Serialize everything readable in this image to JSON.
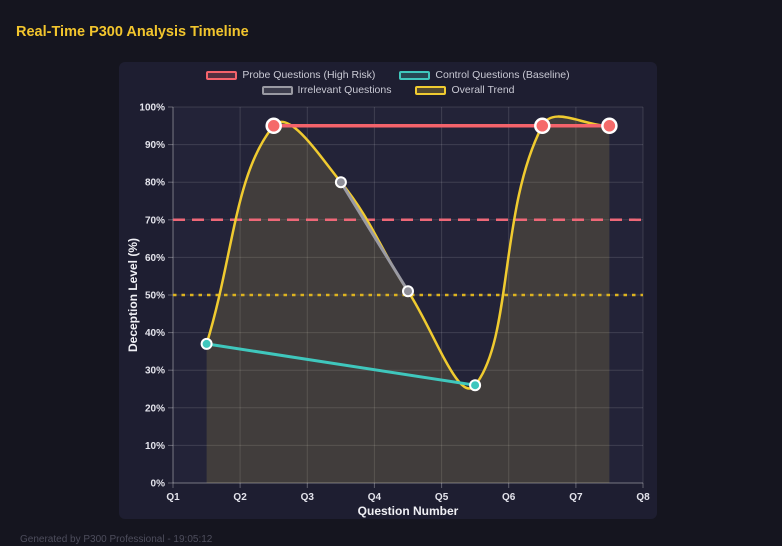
{
  "title": "Real-Time P300 Analysis Timeline",
  "footer": "Generated by P300 Professional - 19:05:12",
  "colors": {
    "page_bg": "#15151f",
    "panel_bg": "#1e1e31",
    "plot_bg": "#232338",
    "title": "#f2c52d",
    "trend_fill": "rgba(221,196,80,0.16)",
    "grid": "rgba(255,255,255,0.13)",
    "axis": "rgba(255,255,255,0.30)",
    "tick_label": "#e4e4ec"
  },
  "legend": {
    "items": [
      {
        "label": "Probe Questions (High Risk)",
        "color": "#f4636b"
      },
      {
        "label": "Control Questions (Baseline)",
        "color": "#3fc7bd"
      },
      {
        "label": "Irrelevant Questions",
        "color": "#9a9aa3"
      },
      {
        "label": "Overall Trend",
        "color": "#f0cb30"
      }
    ]
  },
  "chart_data": {
    "type": "line",
    "title": "Real-Time P300 Analysis Timeline",
    "xlabel": "Question Number",
    "ylabel": "Deception Level (%)",
    "x_ticks": [
      "Q1",
      "Q2",
      "Q3",
      "Q4",
      "Q5",
      "Q6",
      "Q7",
      "Q8"
    ],
    "y_ticks": [
      "0%",
      "10%",
      "20%",
      "30%",
      "40%",
      "50%",
      "60%",
      "70%",
      "80%",
      "90%",
      "100%"
    ],
    "xlim": [
      1,
      8
    ],
    "ylim": [
      0,
      100
    ],
    "grid": true,
    "legend_position": "top",
    "series": [
      {
        "name": "Probe Questions (High Risk)",
        "color": "#f4636b",
        "line_width": 3.5,
        "point_radius": 7,
        "point_ring": 2.5,
        "point_fill": "#f56a6a",
        "smooth": false,
        "fill": false,
        "points": [
          {
            "x": 2.5,
            "y": 95
          },
          {
            "x": 6.5,
            "y": 95
          },
          {
            "x": 7.5,
            "y": 95
          }
        ]
      },
      {
        "name": "Control Questions (Baseline)",
        "color": "#3fc7bd",
        "line_width": 3,
        "point_radius": 5,
        "point_ring": 2,
        "point_fill": "#3fc7bd",
        "smooth": false,
        "fill": false,
        "points": [
          {
            "x": 1.5,
            "y": 37
          },
          {
            "x": 5.5,
            "y": 26
          }
        ]
      },
      {
        "name": "Irrelevant Questions",
        "color": "#9a9aa3",
        "line_width": 3,
        "point_radius": 5,
        "point_ring": 2,
        "point_fill": "#8f8f99",
        "smooth": false,
        "fill": false,
        "points": [
          {
            "x": 3.5,
            "y": 80
          },
          {
            "x": 4.5,
            "y": 51
          }
        ]
      },
      {
        "name": "Overall Trend",
        "color": "#f0cb30",
        "line_width": 2.5,
        "point_radius": 0,
        "point_ring": 0,
        "point_fill": "#f0cb30",
        "smooth": true,
        "fill": true,
        "points": [
          {
            "x": 1.5,
            "y": 37
          },
          {
            "x": 2.5,
            "y": 95
          },
          {
            "x": 3.5,
            "y": 80
          },
          {
            "x": 4.5,
            "y": 51
          },
          {
            "x": 5.5,
            "y": 26
          },
          {
            "x": 6.5,
            "y": 95
          },
          {
            "x": 7.5,
            "y": 95
          }
        ]
      }
    ],
    "thresholds": [
      {
        "y": 70,
        "color": "#ee6878",
        "style": "dashed"
      },
      {
        "y": 50,
        "color": "#ddb31f",
        "style": "dotted"
      }
    ]
  }
}
